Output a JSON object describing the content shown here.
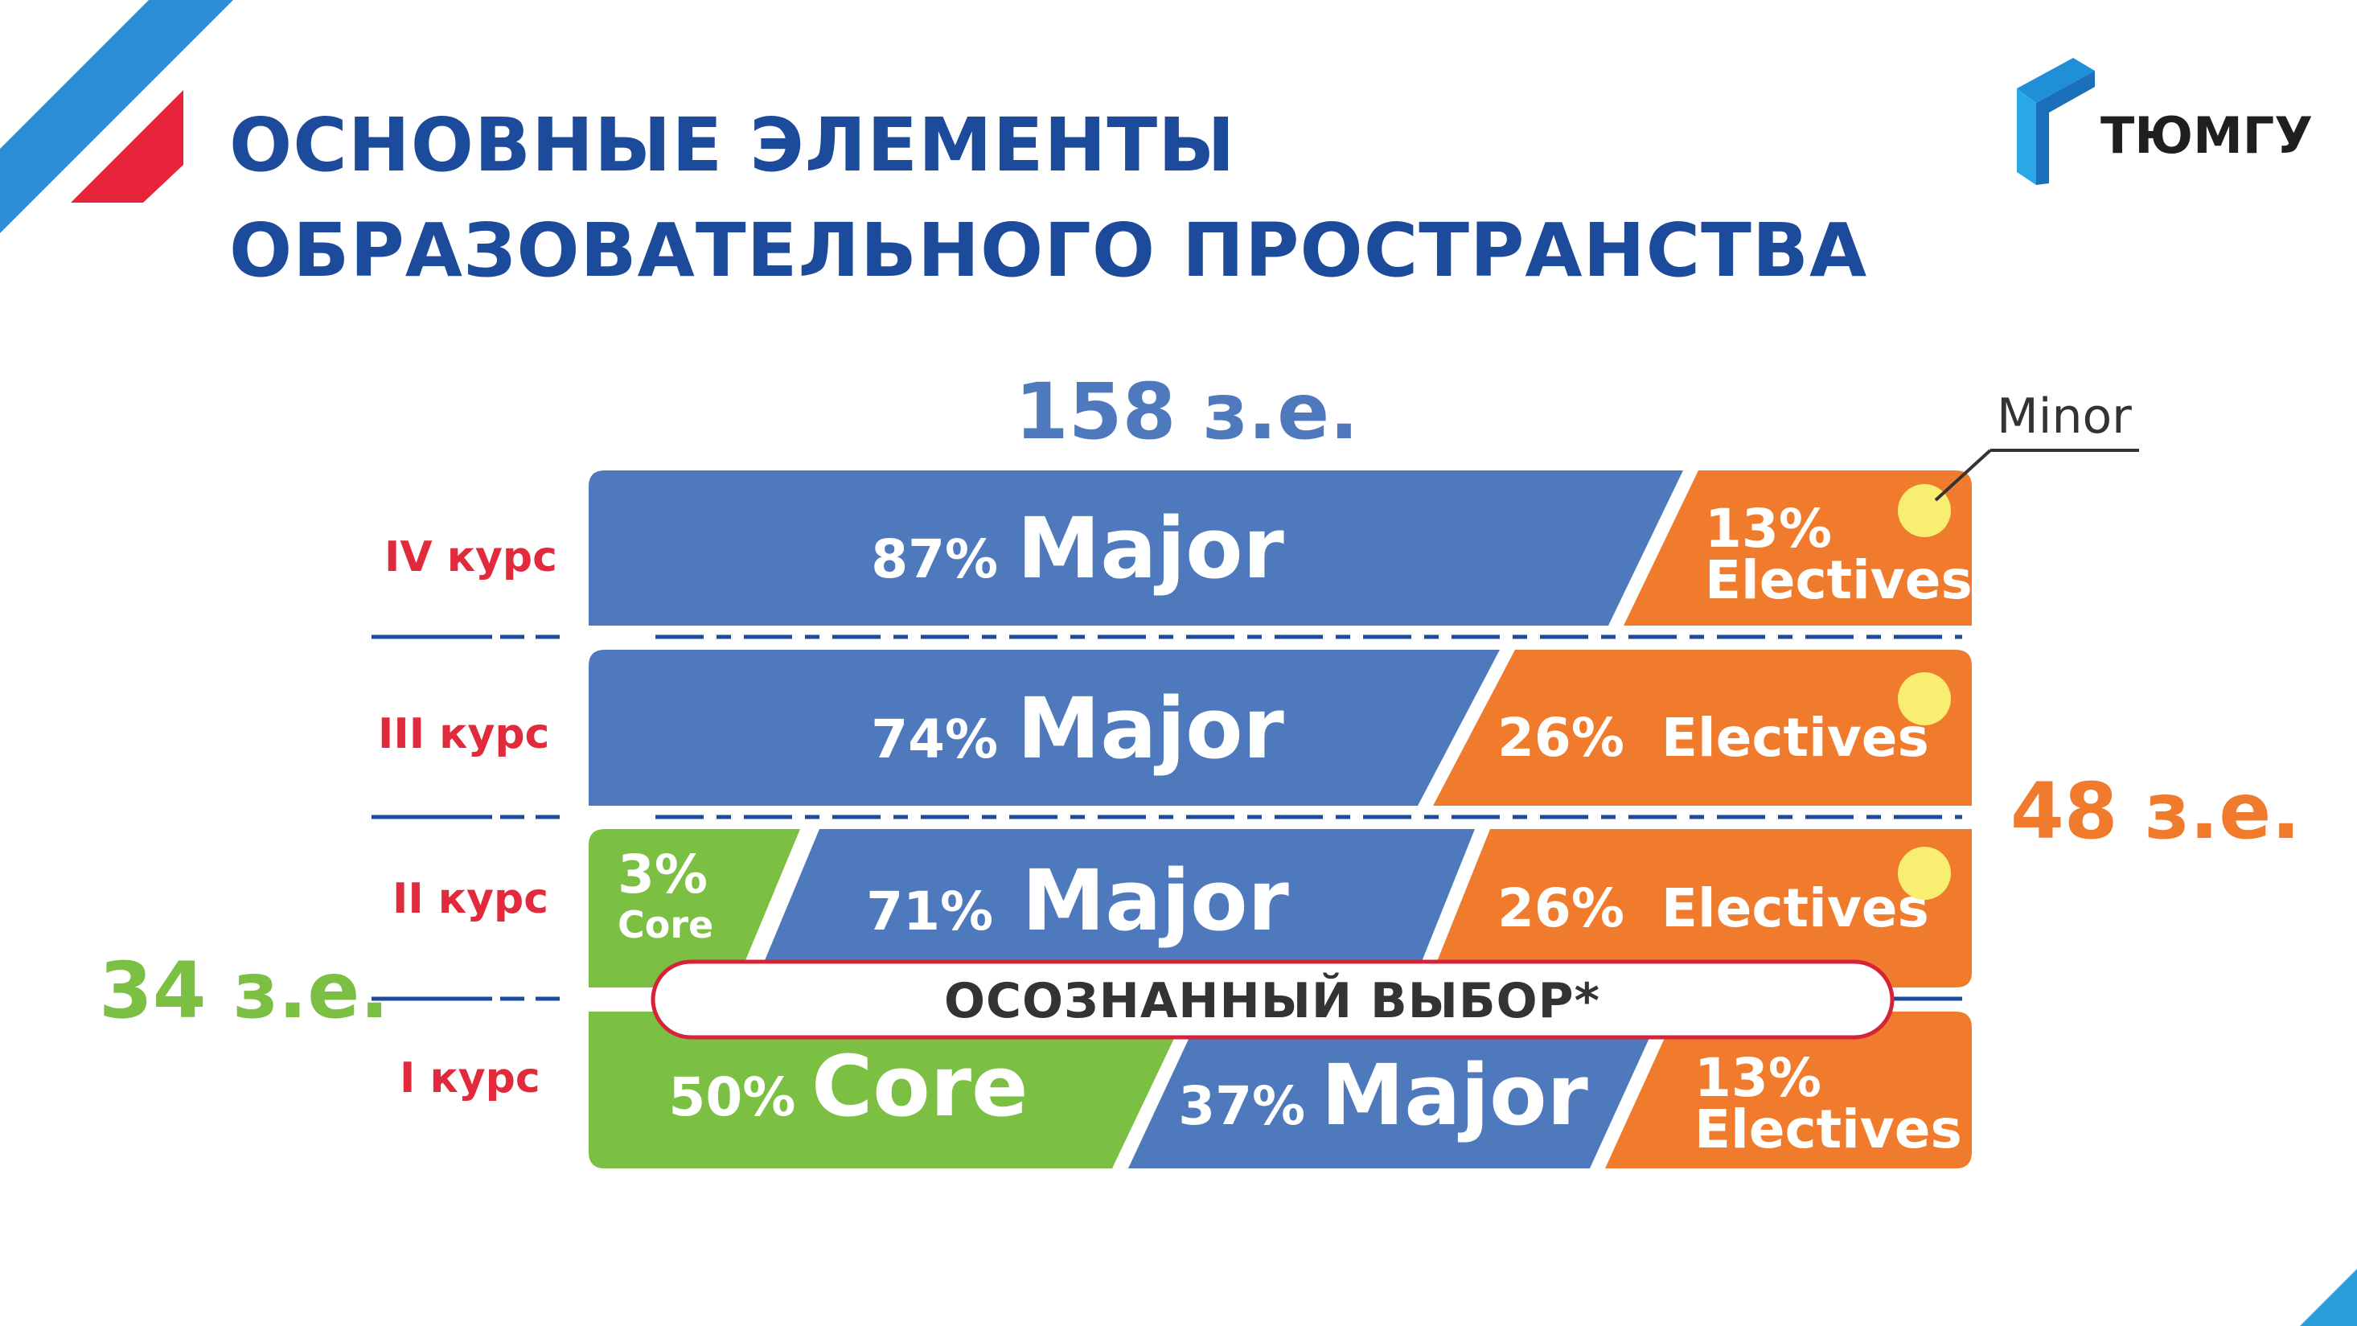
{
  "colors": {
    "title": "#1d4b9b",
    "major": "#4e79bd",
    "electives": "#f07b2c",
    "core": "#7bbf43",
    "course_label": "#e12a3b",
    "minor_dot": "#f8ee72",
    "choice_border": "#d4243a",
    "accent_red": "#e8243a",
    "accent_blue": "#2a9fdc"
  },
  "header": {
    "title_line1": "ОСНОВНЫЕ ЭЛЕМЕНТЫ",
    "title_line2": "ОБРАЗОВАТЕЛЬНОГО ПРОСТРАНСТВА"
  },
  "logo": {
    "text": "ТЮМГУ",
    "icon": "tyumgu-logo-icon"
  },
  "totals": {
    "major": "158 з.е.",
    "electives": "48 з.е.",
    "core": "34 з.е."
  },
  "minor_label": "Minor",
  "choice_label": "ОСОЗНАННЫЙ ВЫБОР*",
  "courses": [
    {
      "label": "IV курс",
      "major": {
        "pct": "87%",
        "name": "Major"
      },
      "electives": {
        "line1": "13%",
        "line2": "Electives"
      },
      "minor": true
    },
    {
      "label": "III  курс",
      "major": {
        "pct": "74%",
        "name": "Major"
      },
      "electives": {
        "text": "26%  Electives"
      },
      "minor": true
    },
    {
      "label": "II курс",
      "core": {
        "line1": "3%",
        "line2": "Core"
      },
      "major": {
        "pct": "71%",
        "name": "Major"
      },
      "electives": {
        "text": "26%  Electives"
      },
      "minor": true
    },
    {
      "label": "I курс",
      "core": {
        "pct": "50%",
        "name": "Core"
      },
      "major": {
        "pct": "37%",
        "name": "Major"
      },
      "electives": {
        "line1": "13%",
        "line2": "Electives"
      },
      "minor": false
    }
  ]
}
